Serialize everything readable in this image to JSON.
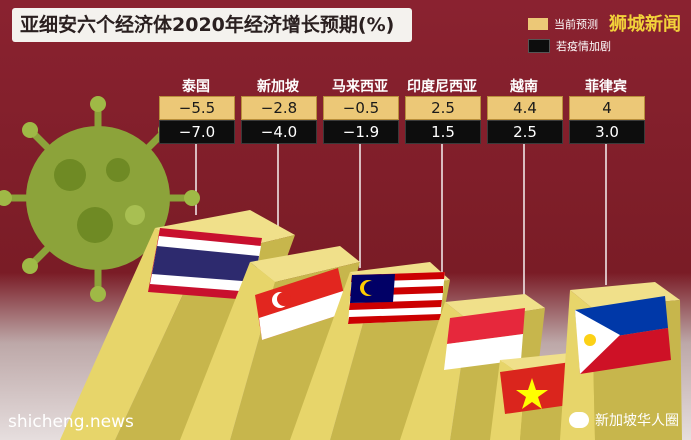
{
  "title": "亚细安六个经济体2020年经济增长预期(%)",
  "watermark": "狮城新闻",
  "footer": {
    "left": "shicheng.news",
    "right": "新加坡华人圈"
  },
  "colors": {
    "background_top": "#86202c",
    "background_bottom": "#d9d2d2",
    "current": "#ecc877",
    "worse": "#0d0d0d",
    "bar_face": "#e7d56a",
    "bar_side": "#c7b64c",
    "virus": "#8ca33a"
  },
  "chart_data": {
    "type": "table",
    "title": "亚细安六个经济体2020年经济增长预期(%)",
    "legend": [
      {
        "name": "当前预测",
        "color": "#ecc877"
      },
      {
        "name": "若疫情加剧",
        "color": "#0d0d0d"
      }
    ],
    "categories": [
      "泰国",
      "新加坡",
      "马来西亚",
      "印度尼西亚",
      "越南",
      "菲律宾"
    ],
    "series": [
      {
        "name": "当前预测",
        "values": [
          -5.5,
          -2.8,
          -0.5,
          2.5,
          4.4,
          4
        ]
      },
      {
        "name": "若疫情加剧",
        "values": [
          -7.0,
          -4.0,
          -1.9,
          1.5,
          2.5,
          3.0
        ]
      }
    ],
    "value_labels_current": [
      "−5.5",
      "−2.8",
      "−0.5",
      "2.5",
      "4.4",
      "4"
    ],
    "value_labels_worse": [
      "−7.0",
      "−4.0",
      "−1.9",
      "1.5",
      "2.5",
      "3.0"
    ],
    "flags": [
      "thailand-flag-icon",
      "singapore-flag-icon",
      "malaysia-flag-icon",
      "indonesia-flag-icon",
      "vietnam-flag-icon",
      "philippines-flag-icon"
    ]
  }
}
